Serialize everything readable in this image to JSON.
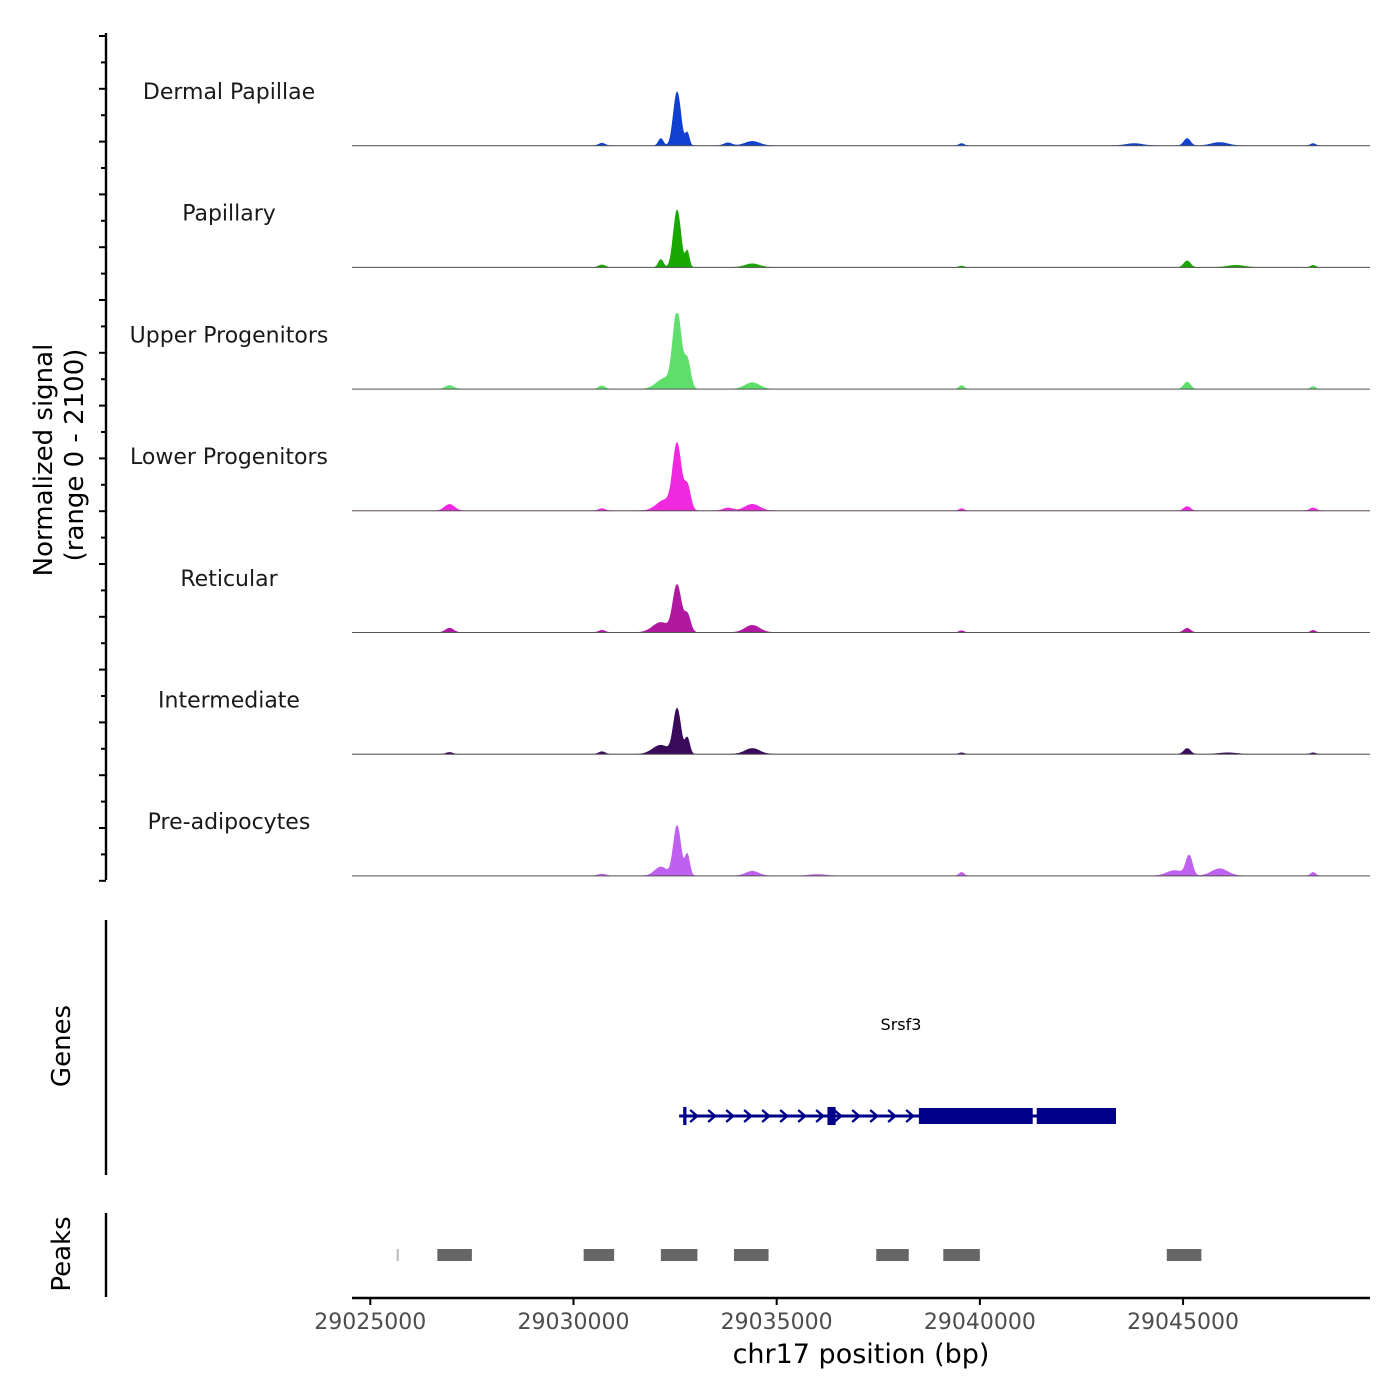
{
  "chart_data": {
    "type": "area",
    "title": "",
    "ylabel_line1": "Normalized signal",
    "ylabel_line2": "(range 0 - 2100)",
    "yrange": [
      0,
      2100
    ],
    "xlabel": "chr17 position (bp)",
    "xlim": [
      29024550,
      29049600
    ],
    "x_ticks": [
      29025000,
      29030000,
      29035000,
      29040000,
      29045000
    ],
    "x_tick_labels": [
      "29025000",
      "29030000",
      "29035000",
      "29040000",
      "29045000"
    ],
    "genes_label": "Genes",
    "peaks_label": "Peaks",
    "tracks": [
      {
        "name": "Dermal Papillae",
        "color": "#1040d0",
        "peaks": [
          [
            29032550,
            1500,
            90
          ],
          [
            29032800,
            350,
            50
          ],
          [
            29032150,
            200,
            60
          ],
          [
            29034400,
            120,
            180
          ],
          [
            29033800,
            80,
            100
          ],
          [
            29030700,
            70,
            80
          ],
          [
            29039550,
            60,
            60
          ],
          [
            29045100,
            200,
            80
          ],
          [
            29045900,
            90,
            200
          ],
          [
            29048200,
            60,
            60
          ],
          [
            29043800,
            60,
            200
          ]
        ]
      },
      {
        "name": "Papillary",
        "color": "#18a800",
        "peaks": [
          [
            29032550,
            1600,
            90
          ],
          [
            29032800,
            450,
            50
          ],
          [
            29032150,
            220,
            60
          ],
          [
            29034400,
            100,
            180
          ],
          [
            29030700,
            70,
            80
          ],
          [
            29039550,
            40,
            60
          ],
          [
            29045100,
            180,
            80
          ],
          [
            29046300,
            60,
            200
          ],
          [
            29048200,
            60,
            60
          ]
        ]
      },
      {
        "name": "Upper Progenitors",
        "color": "#5ede6a",
        "peaks": [
          [
            29032550,
            2100,
            100
          ],
          [
            29032800,
            800,
            80
          ],
          [
            29032250,
            300,
            200
          ],
          [
            29034400,
            180,
            180
          ],
          [
            29026950,
            100,
            100
          ],
          [
            29030700,
            90,
            80
          ],
          [
            29039550,
            100,
            60
          ],
          [
            29045100,
            200,
            80
          ],
          [
            29048200,
            70,
            60
          ]
        ]
      },
      {
        "name": "Lower Progenitors",
        "color": "#f028e0",
        "peaks": [
          [
            29032550,
            1800,
            100
          ],
          [
            29032800,
            700,
            80
          ],
          [
            29032250,
            300,
            200
          ],
          [
            29034400,
            180,
            180
          ],
          [
            29026950,
            180,
            120
          ],
          [
            29030700,
            60,
            80
          ],
          [
            29039550,
            60,
            60
          ],
          [
            29045100,
            120,
            80
          ],
          [
            29048200,
            80,
            80
          ],
          [
            29033800,
            80,
            120
          ]
        ]
      },
      {
        "name": "Reticular",
        "color": "#b018a0",
        "peaks": [
          [
            29032550,
            1300,
            100
          ],
          [
            29032800,
            500,
            80
          ],
          [
            29032150,
            280,
            200
          ],
          [
            29034400,
            200,
            180
          ],
          [
            29026950,
            120,
            100
          ],
          [
            29030700,
            60,
            80
          ],
          [
            29039550,
            50,
            60
          ],
          [
            29045100,
            120,
            80
          ],
          [
            29048200,
            60,
            60
          ]
        ]
      },
      {
        "name": "Intermediate",
        "color": "#3a0a5a",
        "peaks": [
          [
            29032550,
            1250,
            90
          ],
          [
            29032800,
            450,
            60
          ],
          [
            29032150,
            250,
            200
          ],
          [
            29034400,
            160,
            180
          ],
          [
            29026950,
            50,
            80
          ],
          [
            29030700,
            70,
            80
          ],
          [
            29039550,
            40,
            60
          ],
          [
            29045100,
            160,
            80
          ],
          [
            29046100,
            40,
            200
          ],
          [
            29048200,
            40,
            60
          ]
        ]
      },
      {
        "name": "Pre-adipocytes",
        "color": "#c060f0",
        "peaks": [
          [
            29032550,
            1400,
            90
          ],
          [
            29032800,
            600,
            60
          ],
          [
            29032150,
            250,
            150
          ],
          [
            29034400,
            130,
            160
          ],
          [
            29030700,
            50,
            100
          ],
          [
            29039550,
            100,
            60
          ],
          [
            29045150,
            550,
            80
          ],
          [
            29044800,
            150,
            200
          ],
          [
            29045900,
            200,
            200
          ],
          [
            29048200,
            100,
            60
          ],
          [
            29036000,
            40,
            200
          ]
        ]
      }
    ],
    "gene": {
      "name": "Srsf3",
      "color": "#00008b",
      "start": 29032600,
      "end": 29043350,
      "exons": [
        [
          29032700,
          29032780
        ],
        [
          29036250,
          29036450
        ],
        [
          29038500,
          29041300
        ],
        [
          29041400,
          29043350
        ]
      ]
    },
    "peaks_regions": [
      [
        29025650,
        29025700
      ],
      [
        29026650,
        29027500
      ],
      [
        29030250,
        29031000
      ],
      [
        29032150,
        29033050
      ],
      [
        29033950,
        29034800
      ],
      [
        29037450,
        29038250
      ],
      [
        29039100,
        29040000
      ],
      [
        29044600,
        29045450
      ]
    ],
    "peak_color": "#666666"
  }
}
